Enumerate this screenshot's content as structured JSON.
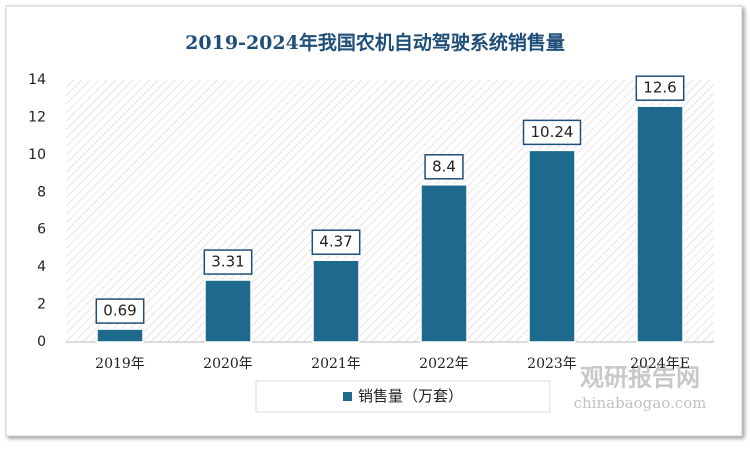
{
  "chart_data": {
    "type": "bar",
    "title": "2019-2024年我国农机自动驾驶系统销售量",
    "categories": [
      "2019年",
      "2020年",
      "2021年",
      "2022年",
      "2023年",
      "2024年E"
    ],
    "series": [
      {
        "name": "销售量（万套）",
        "color": "#1d6a8d",
        "values": [
          0.69,
          3.31,
          4.37,
          8.4,
          10.24,
          12.6
        ]
      }
    ],
    "ylim": [
      0,
      14
    ],
    "yticks": [
      0,
      2,
      4,
      6,
      8,
      10,
      12,
      14
    ],
    "grid": false,
    "legend": "bottom",
    "watermark": {
      "name": "观研报告网",
      "url": "chinabaogao.com"
    }
  }
}
